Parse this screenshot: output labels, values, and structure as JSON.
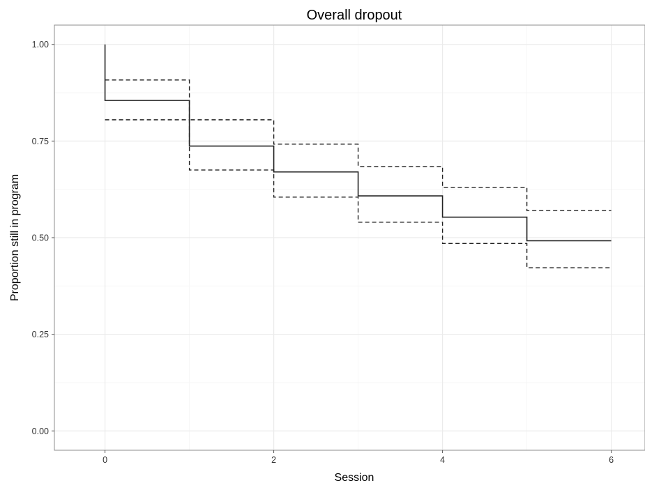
{
  "chart_data": {
    "type": "line",
    "title": "Overall dropout",
    "xlabel": "Session",
    "ylabel": "Proportion still in program",
    "xlim": [
      -0.6,
      6.4
    ],
    "ylim": [
      -0.05,
      1.05
    ],
    "x_ticks": [
      0,
      2,
      4,
      6
    ],
    "x_tick_labels": [
      "0",
      "2",
      "4",
      "6"
    ],
    "y_ticks": [
      0.0,
      0.25,
      0.5,
      0.75,
      1.0
    ],
    "y_tick_labels": [
      "0.00",
      "0.25",
      "0.50",
      "0.75",
      "1.00"
    ],
    "grid": true,
    "step": true,
    "series": [
      {
        "style": "solid",
        "x": [
          0,
          0,
          1,
          2,
          3,
          4,
          5,
          6
        ],
        "y": [
          1.0,
          0.855,
          0.737,
          0.67,
          0.608,
          0.553,
          0.492,
          0.492
        ]
      },
      {
        "style": "dashed",
        "x": [
          0,
          1,
          2,
          3,
          4,
          5,
          6
        ],
        "y": [
          0.908,
          0.805,
          0.742,
          0.684,
          0.63,
          0.57,
          0.57
        ]
      },
      {
        "style": "dashed",
        "x": [
          0,
          1,
          2,
          3,
          4,
          5,
          6
        ],
        "y": [
          0.805,
          0.675,
          0.605,
          0.54,
          0.485,
          0.422,
          0.422
        ]
      }
    ]
  }
}
